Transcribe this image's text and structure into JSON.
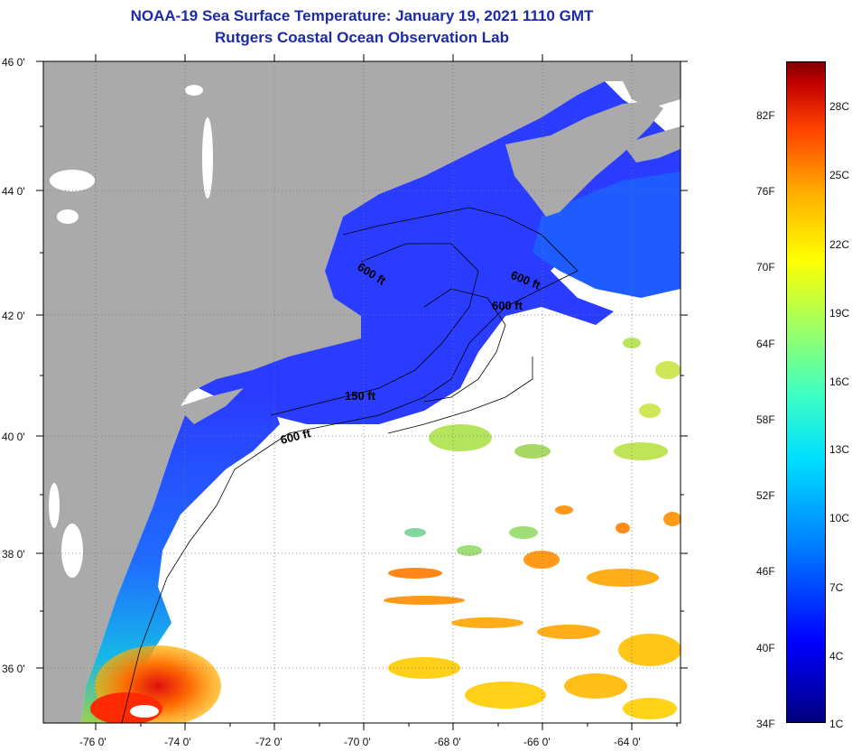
{
  "header": {
    "title": "NOAA-19 Sea Surface Temperature:  January 19, 2021 1110 GMT",
    "subtitle": "Rutgers Coastal Ocean Observation Lab"
  },
  "axes": {
    "lon_labels": [
      "-76 0'",
      "-74 0'",
      "-72 0'",
      "-70 0'",
      "-68 0'",
      "-66 0'",
      "-64 0'"
    ],
    "lat_labels": [
      "46 0'",
      "44 0'",
      "42 0'",
      "40 0'",
      "38 0'",
      "36 0'"
    ]
  },
  "contours": [
    "600 ft",
    "600 ft",
    "600 ft",
    "150 ft",
    "600 ft"
  ],
  "colorbar": {
    "fahrenheit": [
      "82F",
      "76F",
      "70F",
      "64F",
      "58F",
      "52F",
      "46F",
      "40F",
      "34F"
    ],
    "celsius": [
      "28C",
      "25C",
      "22C",
      "19C",
      "16C",
      "13C",
      "10C",
      "7C",
      "4C",
      "1C"
    ]
  },
  "colors": {
    "land": "#aaaaaa",
    "cloud": "#ffffff",
    "water_cold": "#2a3cff",
    "water_cool": "#1e90ff",
    "water_warm": "#ff6a00",
    "title": "#1c2aa8"
  }
}
